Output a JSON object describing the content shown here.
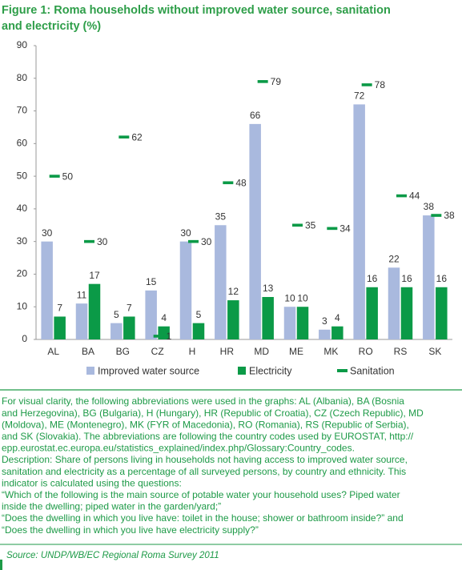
{
  "chart_data": {
    "type": "bar",
    "title_lines": [
      "Figure 1: Roma households without improved water source, sanitation",
      "and electricity (%)"
    ],
    "categories": [
      "AL",
      "BA",
      "BG",
      "CZ",
      "H",
      "HR",
      "MD",
      "ME",
      "MK",
      "RO",
      "RS",
      "SK"
    ],
    "series": [
      {
        "name": "Improved water source",
        "color": "#a9b9de",
        "marker": "bar",
        "values": [
          30,
          11,
          5,
          15,
          30,
          35,
          66,
          10,
          3,
          72,
          22,
          38
        ]
      },
      {
        "name": "Electricity",
        "color": "#0b9a47",
        "marker": "bar",
        "values": [
          7,
          17,
          7,
          4,
          5,
          12,
          13,
          10,
          4,
          16,
          16,
          16
        ]
      },
      {
        "name": "Sanitation",
        "color": "#0b9a47",
        "marker": "dash",
        "values": [
          50,
          30,
          62,
          1,
          30,
          48,
          79,
          35,
          34,
          78,
          44,
          38
        ]
      }
    ],
    "ylim": [
      0,
      90
    ],
    "yticks": [
      0,
      10,
      20,
      30,
      40,
      50,
      60,
      70,
      80,
      90
    ],
    "grid": false
  },
  "notes": [
    "For visual clarity, the following  abbreviations  were used in the graphs:  AL (Albania), BA (Bosnia",
    "and Herzegovina), BG (Bulgaria), H (Hungary), HR (Republic of Croatia), CZ (Czech Republic), MD",
    "(Moldova), ME (Montenegro), MK (FYR of Macedonia), RO (Romania), RS (Republic of Serbia),",
    "and SK (Slovakia). The abbreviations are following the country codes used by EUROSTAT, http://",
    "epp.eurostat.ec.europa.eu/statistics_explained/index.php/Glossary:Country_codes.",
    "Description: Share of persons living in households not having access to improved water source,",
    "sanitation and electricity as a percentage of all surveyed persons, by country and ethnicity. This",
    "indicator is calculated using the questions:",
    "“Which of the following is the main source of potable water your household uses? Piped water",
    "inside the dwelling; piped water in the garden/yard;”",
    "“Does the dwelling in which you live have: toilet in the house; shower or bathroom inside?” and",
    "“Does the dwelling in which you live have electricity supply?”"
  ],
  "source": "Source: UNDP/WB/EC Regional Roma Survey 2011"
}
